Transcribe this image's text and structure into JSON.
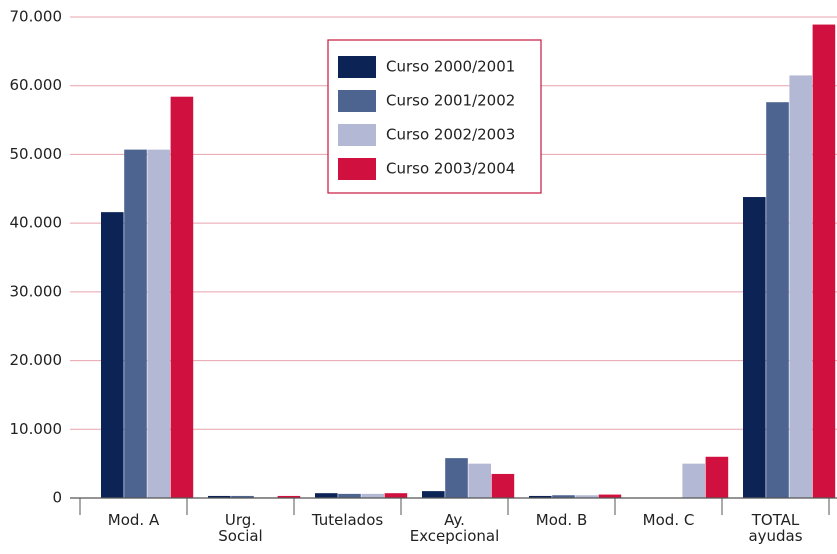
{
  "chart_data": {
    "type": "bar",
    "categories": [
      "Mod. A",
      "Urg.\nSocial",
      "Tutelados",
      "Ay.\nExcepcional",
      "Mod. B",
      "Mod. C",
      "TOTAL\nayudas"
    ],
    "series": [
      {
        "name": "Curso 2000/2001",
        "color": "#0c2356",
        "values": [
          41600,
          300,
          700,
          1000,
          300,
          0,
          43800
        ]
      },
      {
        "name": "Curso 2001/2002",
        "color": "#4d6390",
        "values": [
          50700,
          300,
          600,
          5800,
          400,
          0,
          57600
        ]
      },
      {
        "name": "Curso 2002/2003",
        "color": "#b3b9d4",
        "values": [
          50700,
          100,
          600,
          5000,
          400,
          5000,
          61500
        ]
      },
      {
        "name": "Curso 2003/2004",
        "color": "#d0103f",
        "values": [
          58400,
          300,
          700,
          3500,
          500,
          6000,
          68900
        ]
      }
    ],
    "ylim": [
      0,
      70000
    ],
    "yticks": [
      0,
      {
        "value": 10000,
        "label": "10.000"
      },
      {
        "value": 20000,
        "label": "20.000"
      },
      {
        "value": 30000,
        "label": "30.000"
      },
      {
        "value": 40000,
        "label": "40.000"
      },
      {
        "value": 50000,
        "label": "50.000"
      },
      {
        "value": 60000,
        "label": "60.000"
      },
      {
        "value": 70000,
        "label": "70.000"
      }
    ],
    "grid": true
  }
}
